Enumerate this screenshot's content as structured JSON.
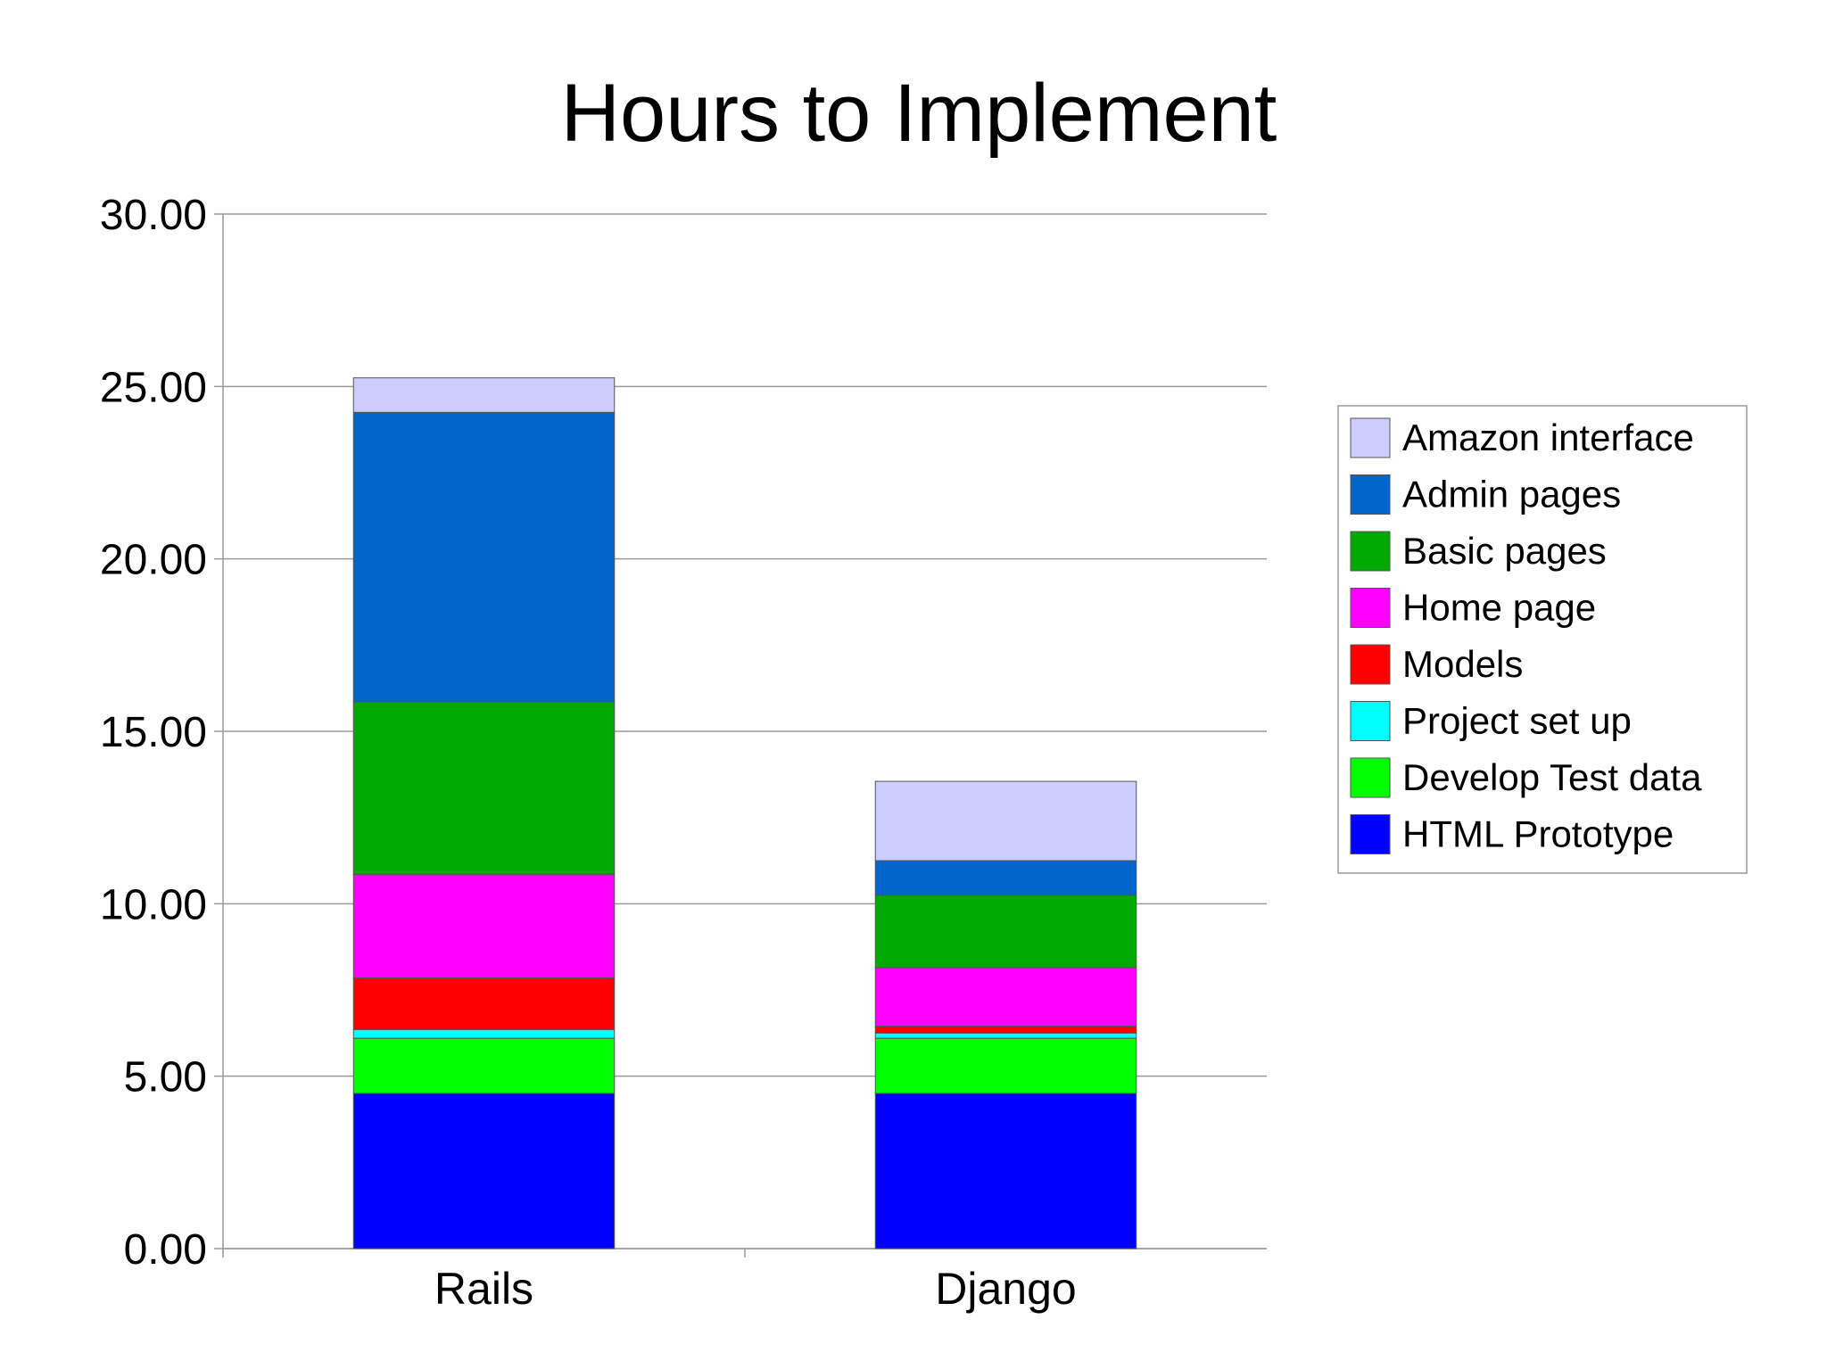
{
  "chart_data": {
    "type": "bar",
    "stacked": true,
    "title": "Hours to Implement",
    "xlabel": "",
    "ylabel": "",
    "ylim": [
      0,
      30
    ],
    "yticks": [
      "0.00",
      "5.00",
      "10.00",
      "15.00",
      "20.00",
      "25.00",
      "30.00"
    ],
    "grid": true,
    "legend_position": "right",
    "categories": [
      "Rails",
      "Django"
    ],
    "series": [
      {
        "name": "HTML Prototype",
        "color": "#0000FF",
        "values": [
          4.5,
          4.5
        ]
      },
      {
        "name": "Develop Test data",
        "color": "#00FF00",
        "values": [
          1.6,
          1.6
        ]
      },
      {
        "name": "Project set up",
        "color": "#00FFFF",
        "values": [
          0.25,
          0.15
        ]
      },
      {
        "name": "Models",
        "color": "#FF0000",
        "values": [
          1.5,
          0.2
        ]
      },
      {
        "name": "Home page",
        "color": "#FF00FF",
        "values": [
          3.0,
          1.7
        ]
      },
      {
        "name": "Basic pages",
        "color": "#00AA00",
        "values": [
          5.0,
          2.1
        ]
      },
      {
        "name": "Admin pages",
        "color": "#0066CC",
        "values": [
          8.4,
          1.0
        ]
      },
      {
        "name": "Amazon interface",
        "color": "#CCCCFF",
        "values": [
          1.0,
          2.3
        ]
      }
    ]
  }
}
